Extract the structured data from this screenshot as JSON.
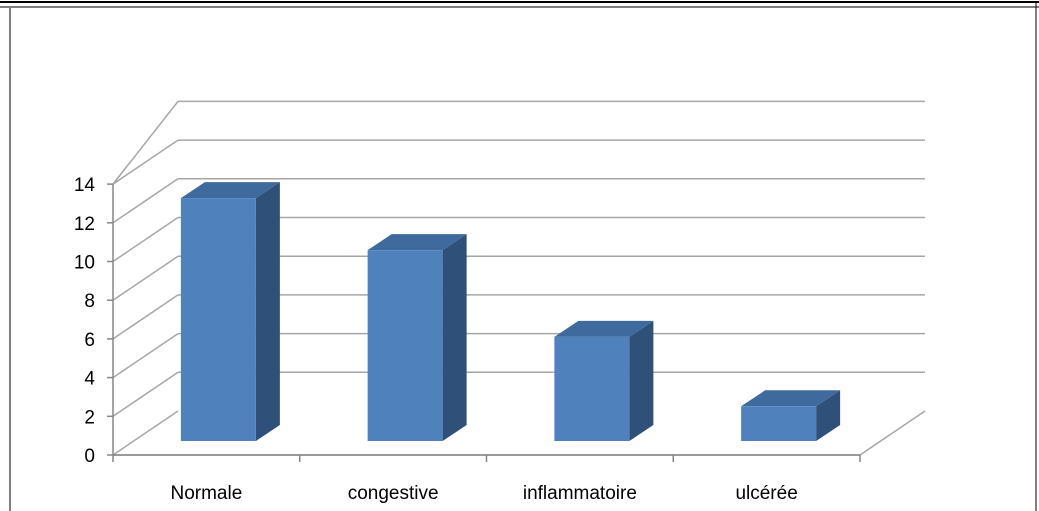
{
  "chart_data": {
    "type": "bar",
    "style": "3d-column",
    "categories": [
      "Normale",
      "congestive",
      "inflammatoire",
      "ulcérée"
    ],
    "values": [
      14,
      11,
      6,
      2
    ],
    "title": "",
    "xlabel": "",
    "ylabel": "",
    "ylim": [
      0,
      14
    ],
    "yticks": [
      "0",
      "2",
      "4",
      "6",
      "8",
      "10",
      "12",
      "14"
    ],
    "grid": true,
    "legend": "none"
  },
  "colors": {
    "bar_front": "#4F81BD",
    "bar_side": "#2F5078",
    "bar_top": "#3F6A9E",
    "gridline": "#A6A6A6",
    "axis": "#868686",
    "frame": "#000000"
  }
}
